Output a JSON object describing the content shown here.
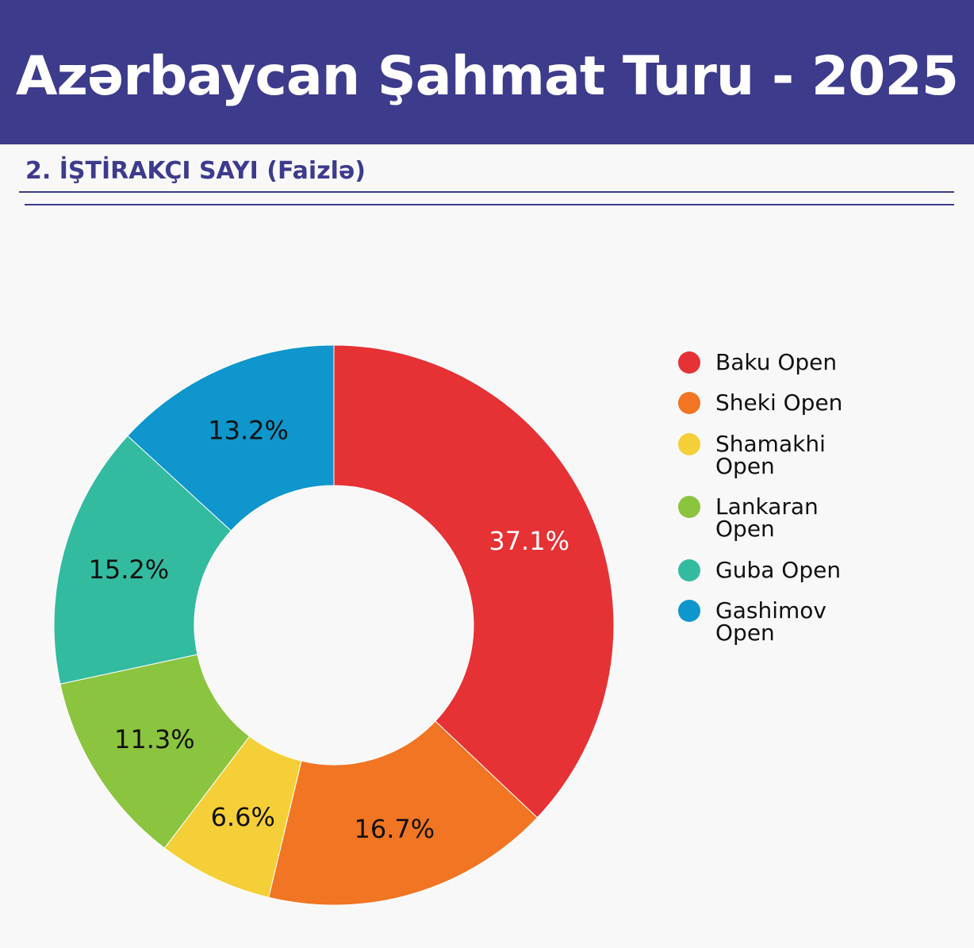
{
  "header": {
    "title": "Azərbaycan Şahmat Turu - 2025",
    "background_color": "#3d3b8c"
  },
  "section": {
    "title": "2. İŞTİRAKÇI SAYI (Faizlə)"
  },
  "chart_data": {
    "type": "pie",
    "donut": true,
    "categories": [
      "Baku Open",
      "Sheki Open",
      "Shamakhi Open",
      "Lankaran Open",
      "Guba Open",
      "Gashimov Open"
    ],
    "values": [
      37.1,
      16.7,
      6.6,
      11.3,
      15.2,
      13.2
    ],
    "labels": [
      "37.1%",
      "16.7%",
      "6.6%",
      "11.3%",
      "15.2%",
      "13.2%"
    ],
    "colors": [
      "#e63234",
      "#f17522",
      "#f5cf37",
      "#8bc43f",
      "#33bba0",
      "#0e96cd"
    ],
    "label_colors": [
      "#ffffff",
      "#111111",
      "#111111",
      "#111111",
      "#111111",
      "#111111"
    ],
    "legend_position": "right",
    "direction": "clockwise",
    "start": "top"
  }
}
